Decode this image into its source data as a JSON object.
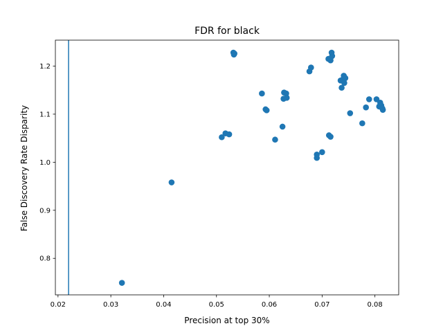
{
  "chart_data": {
    "type": "scatter",
    "title": "FDR for black",
    "xlabel": "Precision at top 30%",
    "ylabel": "False Discovery Rate Disparity",
    "xlim": [
      0.0195,
      0.0845
    ],
    "ylim": [
      0.724,
      1.254
    ],
    "xticks": [
      0.02,
      0.03,
      0.04,
      0.05,
      0.06,
      0.07,
      0.08
    ],
    "xtick_labels": [
      "0.02",
      "0.03",
      "0.04",
      "0.05",
      "0.06",
      "0.07",
      "0.08"
    ],
    "yticks": [
      0.8,
      0.9,
      1.0,
      1.1,
      1.2
    ],
    "ytick_labels": [
      "0.8",
      "0.9",
      "1.0",
      "1.1",
      "1.2"
    ],
    "grid": false,
    "color": "#1f77b4",
    "vline_x": 0.022,
    "series": [
      {
        "points": [
          [
            0.0321,
            0.749
          ],
          [
            0.0415,
            0.958
          ],
          [
            0.051,
            1.052
          ],
          [
            0.0517,
            1.06
          ],
          [
            0.0524,
            1.058
          ],
          [
            0.0532,
            1.228
          ],
          [
            0.0533,
            1.224
          ],
          [
            0.0534,
            1.226
          ],
          [
            0.0586,
            1.143
          ],
          [
            0.0593,
            1.11
          ],
          [
            0.0595,
            1.108
          ],
          [
            0.0611,
            1.047
          ],
          [
            0.0625,
            1.074
          ],
          [
            0.0627,
            1.132
          ],
          [
            0.0628,
            1.145
          ],
          [
            0.0632,
            1.143
          ],
          [
            0.0633,
            1.134
          ],
          [
            0.0676,
            1.189
          ],
          [
            0.0679,
            1.197
          ],
          [
            0.069,
            1.016
          ],
          [
            0.069,
            1.009
          ],
          [
            0.07,
            1.021
          ],
          [
            0.0713,
            1.056
          ],
          [
            0.0716,
            1.053
          ],
          [
            0.0712,
            1.215
          ],
          [
            0.0716,
            1.212
          ],
          [
            0.0718,
            1.228
          ],
          [
            0.0719,
            1.221
          ],
          [
            0.0735,
            1.17
          ],
          [
            0.0737,
            1.155
          ],
          [
            0.0739,
            1.172
          ],
          [
            0.0741,
            1.18
          ],
          [
            0.0742,
            1.165
          ],
          [
            0.0744,
            1.175
          ],
          [
            0.0753,
            1.102
          ],
          [
            0.0776,
            1.081
          ],
          [
            0.0783,
            1.114
          ],
          [
            0.0789,
            1.131
          ],
          [
            0.0803,
            1.131
          ],
          [
            0.0808,
            1.116
          ],
          [
            0.081,
            1.124
          ],
          [
            0.0812,
            1.118
          ],
          [
            0.0814,
            1.112
          ],
          [
            0.0815,
            1.109
          ]
        ]
      }
    ]
  }
}
